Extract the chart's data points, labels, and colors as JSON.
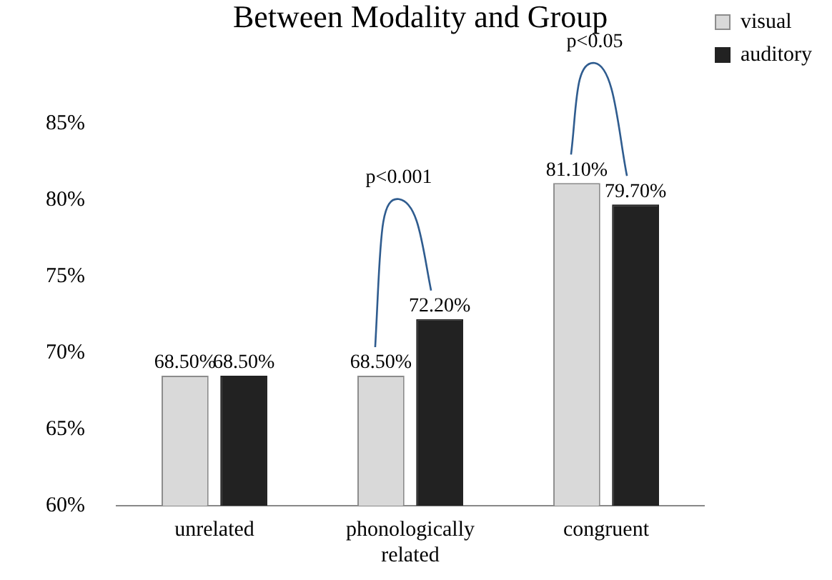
{
  "chart_data": {
    "type": "bar",
    "title": "Between Modality and Group",
    "categories": [
      "unrelated",
      "phonologically related",
      "congruent"
    ],
    "series": [
      {
        "name": "visual",
        "color": "#d9d9d9",
        "values": [
          68.5,
          68.5,
          81.1
        ],
        "value_labels": [
          "68.50%",
          "68.50%",
          "81.10%"
        ]
      },
      {
        "name": "auditory",
        "color": "#222222",
        "values": [
          68.5,
          72.2,
          79.7
        ],
        "value_labels": [
          "68.50%",
          "72.20%",
          "79.70%"
        ]
      }
    ],
    "ylim": [
      60,
      85
    ],
    "yticks": [
      {
        "value": 60,
        "label": "60%"
      },
      {
        "value": 65,
        "label": "65%"
      },
      {
        "value": 70,
        "label": "70%"
      },
      {
        "value": 75,
        "label": "75%"
      },
      {
        "value": 80,
        "label": "80%"
      },
      {
        "value": 85,
        "label": "85%"
      }
    ],
    "grid": false,
    "legend": "top right",
    "annotations": [
      "p<0.001",
      "p<0.05"
    ]
  }
}
